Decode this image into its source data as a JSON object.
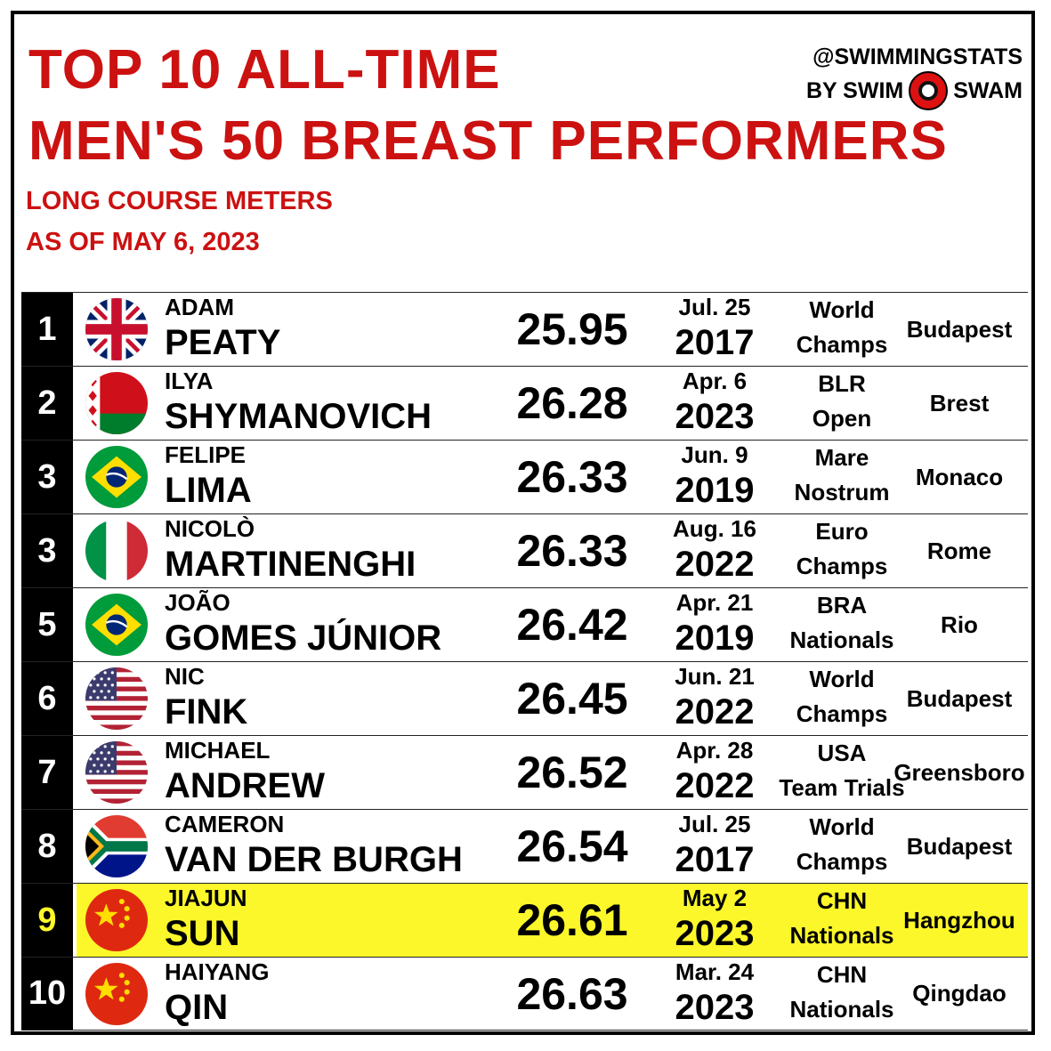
{
  "header": {
    "title_line1": "TOP 10 ALL-TIME",
    "title_line2": "MEN'S 50 BREAST PERFORMERS",
    "subtitle_line1": "LONG COURSE METERS",
    "subtitle_line2": "AS OF MAY 6, 2023"
  },
  "brand": {
    "handle": "@SWIMMINGSTATS",
    "by_prefix": "BY SWIM",
    "by_suffix": "SWAM"
  },
  "colors": {
    "title_red": "#cc1111",
    "highlight_yellow": "#fcf72a",
    "rank_bg": "#000000"
  },
  "rows": [
    {
      "rank": "1",
      "first": "ADAM",
      "last": "PEATY",
      "time": "25.95",
      "date_md": "Jul. 25",
      "year": "2017",
      "meet1": "World",
      "meet2": "Champs",
      "city": "Budapest",
      "flag": "gbr"
    },
    {
      "rank": "2",
      "first": "ILYA",
      "last": "SHYMANOVICH",
      "time": "26.28",
      "date_md": "Apr. 6",
      "year": "2023",
      "meet1": "BLR",
      "meet2": "Open",
      "city": "Brest",
      "flag": "blr"
    },
    {
      "rank": "3",
      "first": "FELIPE",
      "last": "LIMA",
      "time": "26.33",
      "date_md": "Jun. 9",
      "year": "2019",
      "meet1": "Mare",
      "meet2": "Nostrum",
      "city": "Monaco",
      "flag": "bra"
    },
    {
      "rank": "3",
      "first": "NICOLÒ",
      "last": "MARTINENGHI",
      "time": "26.33",
      "date_md": "Aug. 16",
      "year": "2022",
      "meet1": "Euro",
      "meet2": "Champs",
      "city": "Rome",
      "flag": "ita"
    },
    {
      "rank": "5",
      "first": "JOÃO",
      "last": "GOMES JÚNIOR",
      "time": "26.42",
      "date_md": "Apr. 21",
      "year": "2019",
      "meet1": "BRA",
      "meet2": "Nationals",
      "city": "Rio",
      "flag": "bra"
    },
    {
      "rank": "6",
      "first": "NIC",
      "last": "FINK",
      "time": "26.45",
      "date_md": "Jun. 21",
      "year": "2022",
      "meet1": "World",
      "meet2": "Champs",
      "city": "Budapest",
      "flag": "usa"
    },
    {
      "rank": "7",
      "first": "MICHAEL",
      "last": "ANDREW",
      "time": "26.52",
      "date_md": "Apr. 28",
      "year": "2022",
      "meet1": "USA",
      "meet2": "Team Trials",
      "city": "Greensboro",
      "flag": "usa"
    },
    {
      "rank": "8",
      "first": "CAMERON",
      "last": "VAN DER BURGH",
      "time": "26.54",
      "date_md": "Jul. 25",
      "year": "2017",
      "meet1": "World",
      "meet2": "Champs",
      "city": "Budapest",
      "flag": "rsa"
    },
    {
      "rank": "9",
      "first": "JIAJUN",
      "last": "SUN",
      "time": "26.61",
      "date_md": "May 2",
      "year": "2023",
      "meet1": "CHN",
      "meet2": "Nationals",
      "city": "Hangzhou",
      "flag": "chn",
      "highlight": true
    },
    {
      "rank": "10",
      "first": "HAIYANG",
      "last": "QIN",
      "time": "26.63",
      "date_md": "Mar. 24",
      "year": "2023",
      "meet1": "CHN",
      "meet2": "Nationals",
      "city": "Qingdao",
      "flag": "chn"
    }
  ]
}
